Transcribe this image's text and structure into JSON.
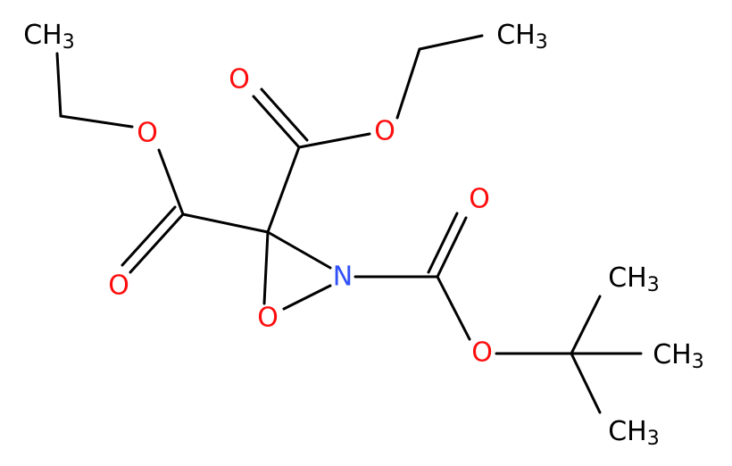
{
  "atoms": [
    {
      "label": "CH",
      "sub": "3"
    },
    {
      "label": "O"
    },
    {
      "label": "O"
    },
    {
      "label": "O"
    },
    {
      "label": "O"
    },
    {
      "label": "CH",
      "sub": "3"
    },
    {
      "label": "N"
    },
    {
      "label": "O"
    },
    {
      "label": "O"
    },
    {
      "label": "O"
    },
    {
      "label": "CH",
      "sub": "3"
    },
    {
      "label": "CH",
      "sub": "3"
    },
    {
      "label": "CH",
      "sub": "3"
    }
  ]
}
